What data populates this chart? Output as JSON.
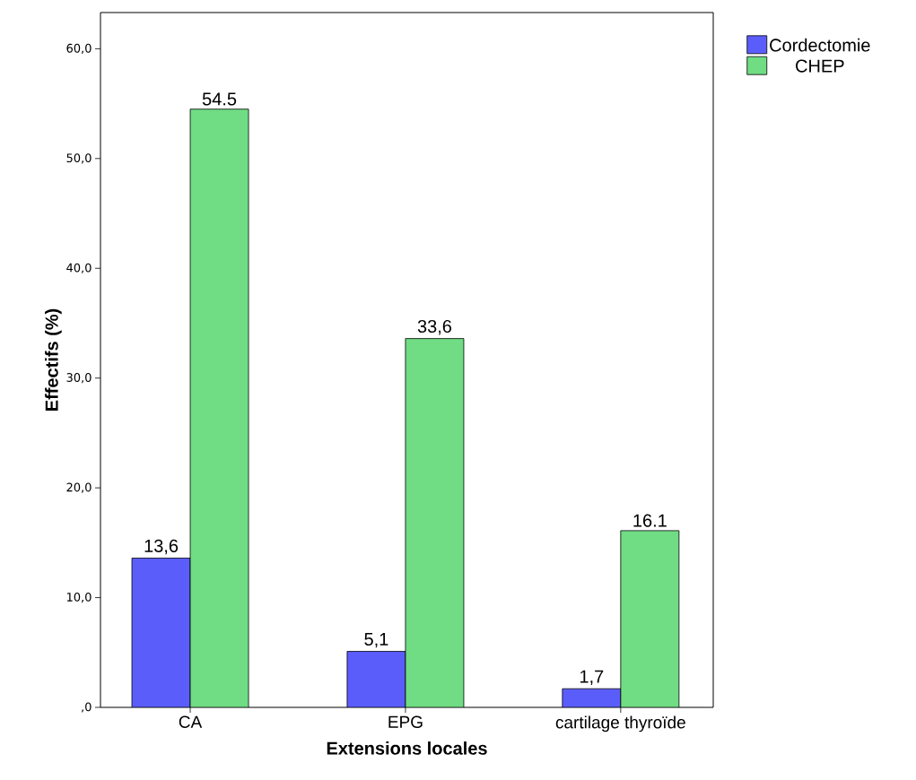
{
  "chart_data": {
    "type": "bar",
    "xlabel": "Extensions locales",
    "ylabel": "Effectifs (%)",
    "categories": [
      "CA",
      "EPG",
      "cartilage thyroïde"
    ],
    "series": [
      {
        "name": "Cordectomie",
        "color": "#5b5dfb",
        "values": [
          13.6,
          5.1,
          1.7
        ],
        "value_labels": [
          "13,6",
          "5,1",
          "1,7"
        ]
      },
      {
        "name": "CHEP",
        "color": "#70dc84",
        "values": [
          54.5,
          33.6,
          16.1
        ],
        "value_labels": [
          "54.5",
          "33,6",
          "16.1"
        ]
      }
    ],
    "ylim": [
      0,
      63.3
    ],
    "yticks": [
      {
        "value": 0,
        "label": ",0"
      },
      {
        "value": 10,
        "label": "10,0"
      },
      {
        "value": 20,
        "label": "20,0"
      },
      {
        "value": 30,
        "label": "30,0"
      },
      {
        "value": 40,
        "label": "40,0"
      },
      {
        "value": 50,
        "label": "50,0"
      },
      {
        "value": 60,
        "label": "60,0"
      }
    ],
    "legend": "top right",
    "grid": false
  }
}
